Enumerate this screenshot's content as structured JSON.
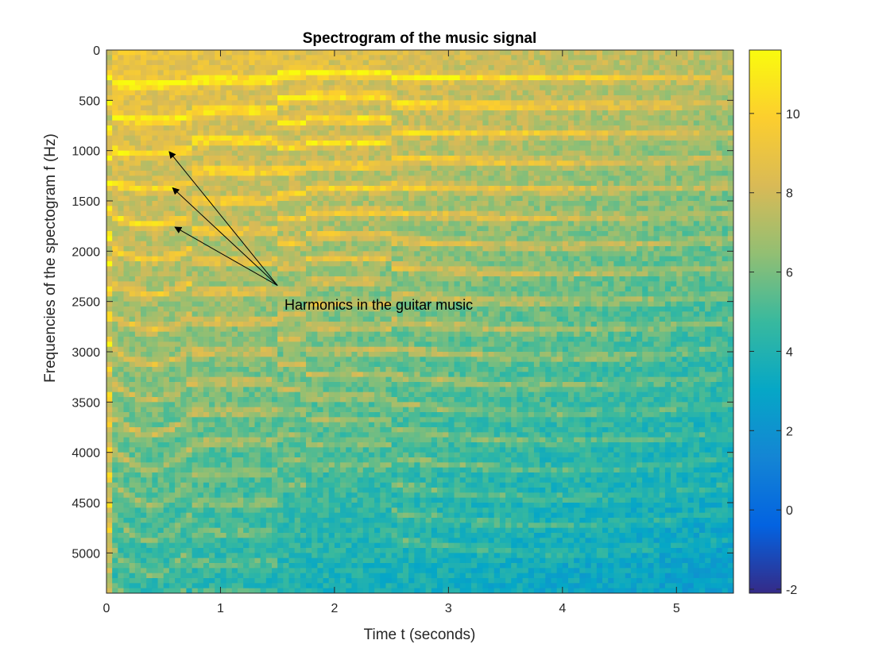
{
  "chart_data": {
    "type": "heatmap",
    "title": "Spectrogram of the music signal",
    "xlabel": "Time t (seconds)",
    "ylabel": "Frequencies of the spectogram f (Hz)",
    "xlim": [
      0,
      5.5
    ],
    "ylim": [
      0,
      5400
    ],
    "y_reversed": true,
    "x_ticks": [
      0,
      1,
      2,
      3,
      4,
      5
    ],
    "y_ticks": [
      0,
      500,
      1000,
      1500,
      2000,
      2500,
      3000,
      3500,
      4000,
      4500,
      5000
    ],
    "colorbar": {
      "range": [
        -2.1,
        11.6
      ],
      "ticks": [
        -2,
        0,
        2,
        4,
        6,
        8,
        10
      ],
      "colormap": "parula",
      "colors": [
        "#352a87",
        "#0363e1",
        "#1485d4",
        "#06a7c6",
        "#38b99e",
        "#92bf73",
        "#d9ba56",
        "#fcce2e",
        "#f9fb0e"
      ]
    },
    "annotation": {
      "text": "Harmonics in the guitar music",
      "anchor": [
        1.57,
        2420
      ],
      "targets": [
        [
          0.55,
          1010
        ],
        [
          0.58,
          1370
        ],
        [
          0.6,
          1760
        ]
      ]
    },
    "notes_segments": [
      {
        "t0": 0.04,
        "t1": 0.75,
        "f0": 330,
        "bend": 70
      },
      {
        "t0": 0.75,
        "t1": 1.25,
        "f0": 300,
        "bend": 0
      },
      {
        "t0": 1.25,
        "t1": 1.5,
        "f0": 300,
        "bend": 0
      },
      {
        "t0": 1.5,
        "t1": 1.75,
        "f0": 240,
        "bend": 0
      },
      {
        "t0": 1.75,
        "t1": 2.22,
        "f0": 230,
        "bend": 0
      },
      {
        "t0": 2.22,
        "t1": 2.48,
        "f0": 230,
        "bend": 0
      },
      {
        "t0": 2.48,
        "t1": 5.5,
        "f0": 270,
        "bend": 40
      }
    ]
  }
}
